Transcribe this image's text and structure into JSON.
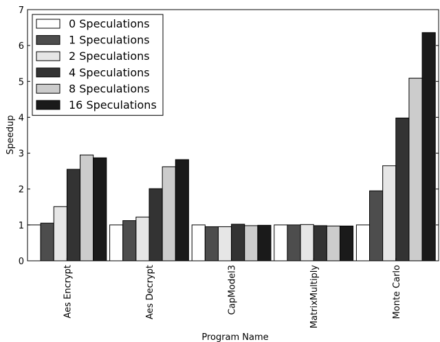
{
  "chart_data": {
    "type": "bar",
    "title": "",
    "xlabel": "Program Name",
    "ylabel": "Speedup",
    "ylim": [
      0,
      7
    ],
    "yticks": [
      0,
      1,
      2,
      3,
      4,
      5,
      6,
      7
    ],
    "grid": false,
    "legend_position": "top-left",
    "categories": [
      "Aes Encrypt",
      "Aes Decrypt",
      "CapModel3",
      "MatrixMultiply",
      "Monte Carlo"
    ],
    "series": [
      {
        "name": "0 Speculations",
        "color": "#ffffff",
        "values": [
          1.0,
          1.0,
          1.0,
          1.0,
          1.0
        ]
      },
      {
        "name": "1 Speculations",
        "color": "#4d4d4d",
        "values": [
          1.05,
          1.12,
          0.95,
          1.0,
          1.95
        ]
      },
      {
        "name": "2 Speculations",
        "color": "#e6e6e6",
        "values": [
          1.51,
          1.22,
          0.95,
          1.01,
          2.65
        ]
      },
      {
        "name": "4 Speculations",
        "color": "#333333",
        "values": [
          2.55,
          2.01,
          1.02,
          0.98,
          3.98
        ]
      },
      {
        "name": "8 Speculations",
        "color": "#cccccc",
        "values": [
          2.95,
          2.62,
          0.98,
          0.97,
          5.09
        ]
      },
      {
        "name": "16 Speculations",
        "color": "#1a1a1a",
        "values": [
          2.87,
          2.82,
          0.99,
          0.97,
          6.36
        ]
      }
    ]
  }
}
